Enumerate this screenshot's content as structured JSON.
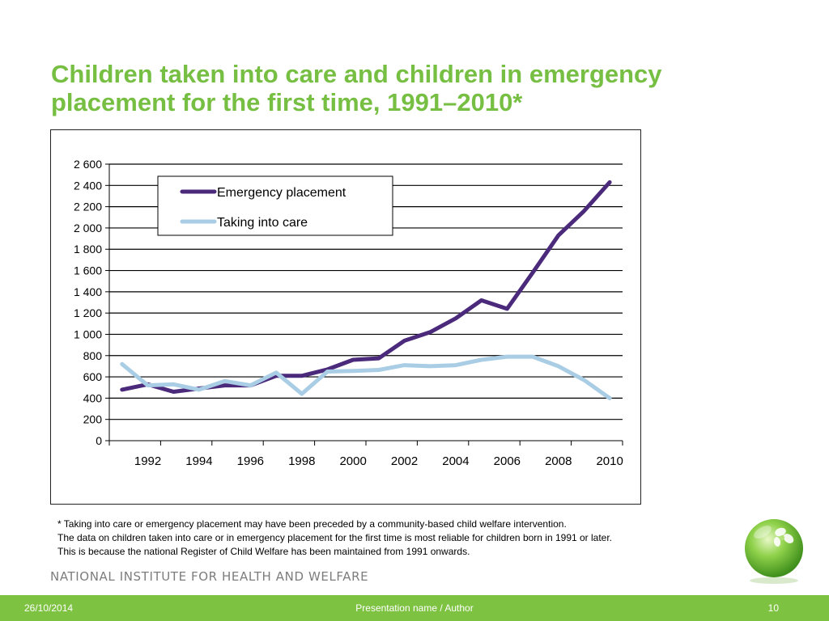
{
  "slide": {
    "title": "Children taken into care and children in emergency placement for the first time, 1991–2010*",
    "notes": [
      "* Taking into care or emergency placement may have been preceded by a community-based child welfare intervention.",
      "The data on children taken into care or in emergency placement for the first time is most reliable for children born in 1991 or later.",
      "This is because the national Register of Child Welfare has been maintained from 1991 onwards."
    ],
    "organization": "NATIONAL INSTITUTE FOR HEALTH AND WELFARE",
    "footer": {
      "date": "26/10/2014",
      "center": "Presentation name / Author",
      "page": "10"
    },
    "colors": {
      "title": "#76bf43",
      "footer_bar": "#7ec242",
      "organization": "#7d7d7d"
    }
  },
  "chart_data": {
    "type": "line",
    "title": "",
    "xlabel": "",
    "ylabel": "",
    "x": [
      1991,
      1992,
      1993,
      1994,
      1995,
      1996,
      1997,
      1998,
      1999,
      2000,
      2001,
      2002,
      2003,
      2004,
      2005,
      2006,
      2007,
      2008,
      2009,
      2010
    ],
    "x_tick_labels": [
      "1992",
      "1994",
      "1996",
      "1998",
      "2000",
      "2002",
      "2004",
      "2006",
      "2008",
      "2010"
    ],
    "y_tick_labels": [
      "0",
      "200",
      "400",
      "600",
      "800",
      "1 000",
      "1 200",
      "1 400",
      "1 600",
      "1 800",
      "2 000",
      "2 200",
      "2 400",
      "2 600"
    ],
    "ylim": [
      0,
      2600
    ],
    "grid": "horizontal",
    "legend_position": "top-left",
    "series": [
      {
        "name": "Emergency placement",
        "color": "#4b2a7b",
        "values": [
          480,
          530,
          460,
          490,
          520,
          520,
          610,
          610,
          670,
          760,
          775,
          940,
          1020,
          1150,
          1320,
          1240,
          1580,
          1930,
          2160,
          2430
        ]
      },
      {
        "name": "Taking into care",
        "color": "#a9cde4",
        "values": [
          720,
          520,
          530,
          480,
          560,
          520,
          640,
          440,
          650,
          655,
          665,
          710,
          700,
          710,
          760,
          790,
          790,
          700,
          570,
          400
        ]
      }
    ]
  }
}
